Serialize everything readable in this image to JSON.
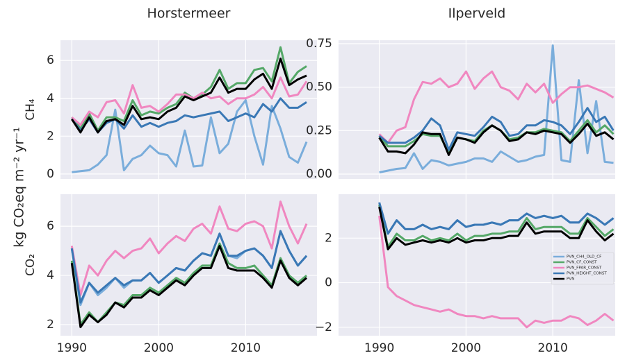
{
  "figure_ylabel": "kg CO₂eq m⁻² yr⁻¹",
  "chart_data": [
    {
      "type": "line",
      "title": "Horstermeer",
      "ylabel": "CH₄",
      "x": [
        1990,
        1991,
        1992,
        1993,
        1994,
        1995,
        1996,
        1997,
        1998,
        1999,
        2000,
        2001,
        2002,
        2003,
        2004,
        2005,
        2006,
        2007,
        2008,
        2009,
        2010,
        2011,
        2012,
        2013,
        2014,
        2015,
        2016,
        2017
      ],
      "xlim": [
        1988.7,
        2018.2
      ],
      "xticks": [
        1990,
        2000,
        2010
      ],
      "ylim": [
        -0.26,
        7.07
      ],
      "yticks": [
        0,
        2,
        4,
        6
      ],
      "grid": true,
      "series": [
        {
          "color": "#7aaddb",
          "values": [
            0.1,
            0.15,
            0.2,
            0.5,
            1.0,
            3.4,
            0.2,
            0.8,
            1.0,
            1.5,
            1.1,
            1.0,
            0.4,
            2.3,
            0.4,
            0.45,
            3.0,
            1.1,
            1.6,
            3.3,
            3.9,
            2.0,
            0.5,
            3.6,
            2.4,
            0.9,
            0.6,
            1.7
          ]
        },
        {
          "color": "#55a868",
          "values": [
            3.0,
            2.4,
            3.2,
            2.3,
            3.0,
            3.0,
            2.8,
            3.9,
            3.1,
            3.3,
            3.2,
            3.5,
            3.7,
            4.3,
            4.0,
            4.2,
            4.6,
            5.5,
            4.5,
            4.8,
            4.8,
            5.5,
            5.6,
            4.9,
            6.7,
            4.8,
            5.4,
            5.7
          ]
        },
        {
          "color": "#f087c0",
          "values": [
            3.0,
            2.6,
            3.3,
            3.0,
            3.8,
            3.9,
            3.2,
            4.7,
            3.5,
            3.6,
            3.3,
            3.7,
            4.2,
            4.2,
            4.0,
            4.3,
            4.0,
            4.1,
            3.7,
            4.0,
            4.0,
            4.2,
            4.6,
            4.0,
            5.1,
            4.1,
            4.2,
            4.9
          ]
        },
        {
          "color": "#3a78b5",
          "values": [
            2.9,
            2.3,
            2.9,
            2.2,
            2.7,
            2.9,
            2.4,
            3.1,
            2.5,
            2.7,
            2.5,
            2.7,
            2.8,
            3.1,
            3.0,
            3.1,
            3.2,
            3.3,
            2.8,
            3.0,
            3.2,
            3.0,
            3.7,
            3.3,
            4.0,
            3.5,
            3.5,
            3.8
          ]
        },
        {
          "color": "#000000",
          "values": [
            2.9,
            2.2,
            3.0,
            2.2,
            2.8,
            2.9,
            2.6,
            3.6,
            2.9,
            3.0,
            2.9,
            3.3,
            3.5,
            4.1,
            3.9,
            4.1,
            4.3,
            5.1,
            4.3,
            4.5,
            4.5,
            5.0,
            5.3,
            4.5,
            6.1,
            4.7,
            5.0,
            5.2
          ]
        }
      ]
    },
    {
      "type": "line",
      "title": "Ilperveld",
      "x": [
        1990,
        1991,
        1992,
        1993,
        1994,
        1995,
        1996,
        1997,
        1998,
        1999,
        2000,
        2001,
        2002,
        2003,
        2004,
        2005,
        2006,
        2007,
        2008,
        2009,
        2010,
        2011,
        2012,
        2013,
        2014,
        2015,
        2016,
        2017
      ],
      "xlim": [
        1985.3,
        2017.2
      ],
      "xticks": [
        1990,
        2000,
        2010
      ],
      "ylim": [
        -0.028,
        0.77
      ],
      "yticks": [
        {
          "value": 0,
          "label": "0.00"
        },
        0.25,
        {
          "value": 0.5,
          "label": "0.50"
        },
        0.75
      ],
      "grid": true,
      "series": [
        {
          "color": "#7aaddb",
          "values": [
            0.01,
            0.02,
            0.03,
            0.035,
            0.12,
            0.03,
            0.08,
            0.07,
            0.05,
            0.06,
            0.07,
            0.09,
            0.09,
            0.07,
            0.13,
            0.1,
            0.07,
            0.08,
            0.1,
            0.11,
            0.74,
            0.08,
            0.07,
            0.54,
            0.12,
            0.42,
            0.07,
            0.065
          ]
        },
        {
          "color": "#55a868",
          "values": [
            0.22,
            0.16,
            0.16,
            0.16,
            0.19,
            0.23,
            0.22,
            0.22,
            0.12,
            0.21,
            0.2,
            0.19,
            0.25,
            0.28,
            0.25,
            0.2,
            0.21,
            0.24,
            0.24,
            0.26,
            0.25,
            0.24,
            0.19,
            0.25,
            0.31,
            0.24,
            0.28,
            0.23
          ]
        },
        {
          "color": "#f087c0",
          "values": [
            0.23,
            0.18,
            0.25,
            0.27,
            0.43,
            0.53,
            0.52,
            0.55,
            0.5,
            0.52,
            0.59,
            0.49,
            0.55,
            0.59,
            0.5,
            0.48,
            0.43,
            0.52,
            0.47,
            0.52,
            0.41,
            0.46,
            0.5,
            0.5,
            0.51,
            0.49,
            0.47,
            0.44
          ]
        },
        {
          "color": "#3a78b5",
          "values": [
            0.22,
            0.18,
            0.18,
            0.18,
            0.21,
            0.25,
            0.32,
            0.28,
            0.14,
            0.24,
            0.23,
            0.22,
            0.27,
            0.33,
            0.3,
            0.22,
            0.23,
            0.28,
            0.28,
            0.31,
            0.3,
            0.28,
            0.23,
            0.3,
            0.38,
            0.3,
            0.33,
            0.25
          ]
        },
        {
          "color": "#000000",
          "values": [
            0.21,
            0.13,
            0.13,
            0.12,
            0.17,
            0.24,
            0.23,
            0.23,
            0.11,
            0.21,
            0.2,
            0.18,
            0.24,
            0.28,
            0.25,
            0.19,
            0.2,
            0.24,
            0.23,
            0.25,
            0.24,
            0.23,
            0.18,
            0.23,
            0.29,
            0.22,
            0.24,
            0.2
          ]
        }
      ]
    },
    {
      "type": "line",
      "ylabel": "CO₂",
      "x": [
        1990,
        1991,
        1992,
        1993,
        1994,
        1995,
        1996,
        1997,
        1998,
        1999,
        2000,
        2001,
        2002,
        2003,
        2004,
        2005,
        2006,
        2007,
        2008,
        2009,
        2010,
        2011,
        2012,
        2013,
        2014,
        2015,
        2016,
        2017
      ],
      "xlim": [
        1988.7,
        2018.2
      ],
      "xticks": [
        1990,
        2000,
        2010
      ],
      "ylim": [
        1.55,
        7.3
      ],
      "yticks": [
        2,
        4,
        6
      ],
      "grid": true,
      "series": [
        {
          "color": "#7aaddb",
          "values": [
            5.1,
            2.8,
            3.7,
            3.2,
            3.5,
            3.9,
            3.5,
            3.8,
            3.8,
            4.1,
            3.7,
            4.0,
            4.3,
            4.2,
            4.6,
            4.9,
            4.8,
            5.7,
            4.8,
            4.7,
            5.0,
            5.1,
            4.8,
            4.3,
            5.8,
            5.0,
            4.4,
            4.8
          ]
        },
        {
          "color": "#55a868",
          "values": [
            4.6,
            2.0,
            2.5,
            2.1,
            2.5,
            2.9,
            2.8,
            3.2,
            3.2,
            3.5,
            3.3,
            3.6,
            3.9,
            3.7,
            4.1,
            4.4,
            4.4,
            5.3,
            4.5,
            4.3,
            4.3,
            4.4,
            4.0,
            3.6,
            4.7,
            4.0,
            3.7,
            4.0
          ]
        },
        {
          "color": "#f087c0",
          "values": [
            5.2,
            3.2,
            4.4,
            4.0,
            4.6,
            5.0,
            4.7,
            5.0,
            5.1,
            5.5,
            4.9,
            5.3,
            5.6,
            5.4,
            5.9,
            6.1,
            5.7,
            6.8,
            5.9,
            5.8,
            6.1,
            6.2,
            6.0,
            5.1,
            7.0,
            6.0,
            5.3,
            6.1
          ]
        },
        {
          "color": "#3a78b5",
          "values": [
            5.1,
            2.9,
            3.7,
            3.3,
            3.6,
            3.9,
            3.6,
            3.8,
            3.8,
            4.1,
            3.7,
            4.0,
            4.3,
            4.2,
            4.6,
            4.9,
            4.8,
            5.7,
            4.8,
            4.8,
            5.0,
            5.1,
            4.8,
            4.3,
            5.8,
            5.0,
            4.4,
            4.8
          ]
        },
        {
          "color": "#000000",
          "values": [
            4.5,
            1.9,
            2.4,
            2.1,
            2.4,
            2.9,
            2.7,
            3.1,
            3.1,
            3.4,
            3.2,
            3.5,
            3.8,
            3.6,
            4.0,
            4.3,
            4.3,
            5.2,
            4.3,
            4.2,
            4.2,
            4.2,
            3.9,
            3.5,
            4.6,
            3.9,
            3.6,
            3.9
          ]
        }
      ]
    },
    {
      "type": "line",
      "x": [
        1990,
        1991,
        1992,
        1993,
        1994,
        1995,
        1996,
        1997,
        1998,
        1999,
        2000,
        2001,
        2002,
        2003,
        2004,
        2005,
        2006,
        2007,
        2008,
        2009,
        2010,
        2011,
        2012,
        2013,
        2014,
        2015,
        2016,
        2017
      ],
      "xlim": [
        1985.3,
        2017.2
      ],
      "xticks": [
        1990,
        2000,
        2010
      ],
      "ylim": [
        -2.38,
        3.97
      ],
      "yticks": [
        {
          "value": -2,
          "label": "−2"
        },
        0,
        2
      ],
      "grid": true,
      "legend": "center right",
      "series": [
        {
          "name": "PVN_CH4_OLD_CF",
          "color": "#7aaddb",
          "values": [
            3.6,
            2.2,
            2.8,
            2.4,
            2.4,
            2.6,
            2.4,
            2.5,
            2.4,
            2.8,
            2.5,
            2.6,
            2.6,
            2.7,
            2.6,
            2.8,
            2.8,
            3.1,
            2.9,
            3.0,
            2.9,
            3.0,
            2.7,
            2.7,
            3.1,
            2.9,
            2.6,
            2.9
          ]
        },
        {
          "name": "PVN_CF_CONST",
          "color": "#55a868",
          "values": [
            3.5,
            1.6,
            2.2,
            1.9,
            1.9,
            2.1,
            1.9,
            2.0,
            1.9,
            2.2,
            1.9,
            2.1,
            2.1,
            2.2,
            2.2,
            2.3,
            2.3,
            2.9,
            2.4,
            2.5,
            2.5,
            2.5,
            2.2,
            2.2,
            2.9,
            2.5,
            2.1,
            2.4
          ]
        },
        {
          "name": "PVN_FPAR_CONST",
          "color": "#f087c0",
          "values": [
            3.0,
            -0.2,
            -0.6,
            -0.8,
            -1.0,
            -1.1,
            -1.2,
            -1.3,
            -1.2,
            -1.4,
            -1.5,
            -1.5,
            -1.6,
            -1.5,
            -1.6,
            -1.6,
            -1.6,
            -2.0,
            -1.7,
            -1.8,
            -1.7,
            -1.7,
            -1.5,
            -1.6,
            -1.9,
            -1.7,
            -1.4,
            -1.7
          ]
        },
        {
          "name": "PVN_HEIGHT_CONST",
          "color": "#3a78b5",
          "values": [
            3.6,
            2.2,
            2.8,
            2.4,
            2.4,
            2.6,
            2.4,
            2.5,
            2.4,
            2.8,
            2.5,
            2.6,
            2.6,
            2.7,
            2.6,
            2.8,
            2.8,
            3.1,
            2.9,
            3.0,
            2.9,
            3.0,
            2.7,
            2.7,
            3.1,
            2.9,
            2.6,
            2.9
          ]
        },
        {
          "name": "PVN",
          "color": "#000000",
          "values": [
            3.4,
            1.5,
            2.0,
            1.7,
            1.8,
            1.9,
            1.8,
            1.9,
            1.8,
            2.0,
            1.8,
            1.9,
            1.9,
            2.0,
            2.0,
            2.1,
            2.1,
            2.7,
            2.2,
            2.3,
            2.3,
            2.3,
            2.0,
            2.0,
            2.8,
            2.3,
            1.9,
            2.2
          ]
        }
      ]
    }
  ]
}
